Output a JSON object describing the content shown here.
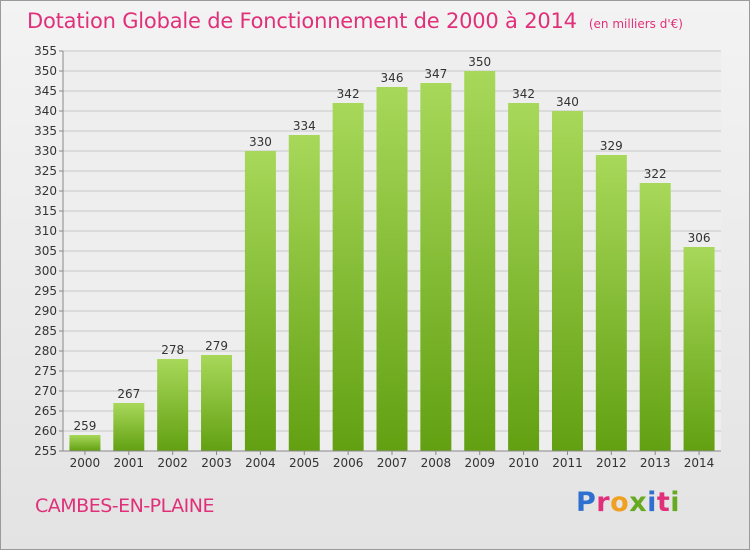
{
  "chart_data": {
    "type": "bar",
    "title": "Dotation Globale de Fonctionnement de 2000 à 2014",
    "subtitle": "(en milliers d'€)",
    "categories": [
      "2000",
      "2001",
      "2002",
      "2003",
      "2004",
      "2005",
      "2006",
      "2007",
      "2008",
      "2009",
      "2010",
      "2011",
      "2012",
      "2013",
      "2014"
    ],
    "values": [
      259,
      267,
      278,
      279,
      330,
      334,
      342,
      346,
      347,
      350,
      342,
      340,
      329,
      322,
      306
    ],
    "ylim": [
      255,
      355
    ],
    "ytick_step": 5,
    "xlabel": "",
    "ylabel": "",
    "grid": true,
    "colors": {
      "bar_top": "#a8d85a",
      "bar_bottom": "#62a012",
      "grid": "#c8c8c8",
      "axis_text": "#333333",
      "accent": "#e0307a"
    }
  },
  "footer": {
    "commune": "CAMBES-EN-PLAINE",
    "logo_text": "Proxiti",
    "logo_colors": [
      "#2f6fd0",
      "#e0307a",
      "#f0a020",
      "#66aa22",
      "#2f6fd0",
      "#e0307a",
      "#66aa22"
    ]
  }
}
